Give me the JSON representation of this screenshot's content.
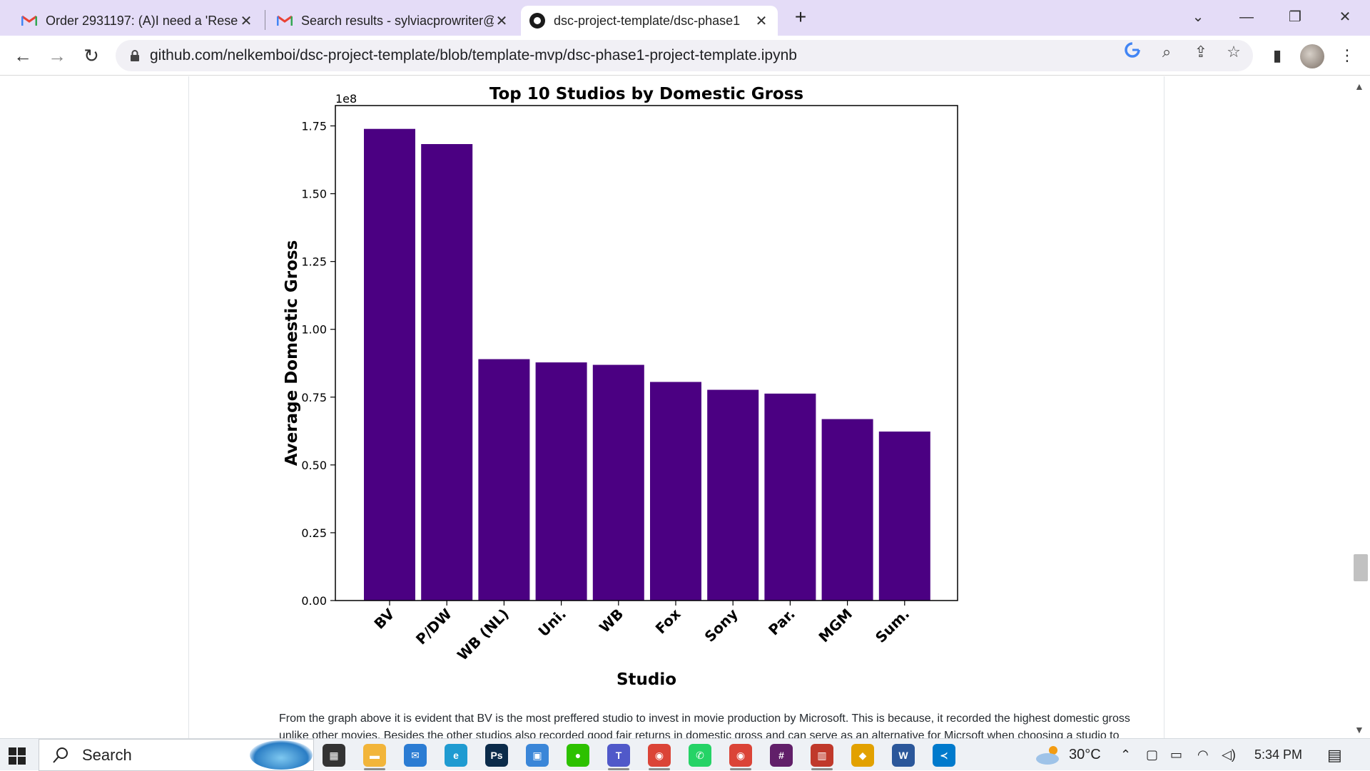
{
  "browser": {
    "tabs": [
      {
        "title": "Order 2931197: (A)I need a 'Rese",
        "icon": "gmail-icon",
        "active": false
      },
      {
        "title": "Search results - sylviacprowriter@",
        "icon": "gmail-icon",
        "active": false
      },
      {
        "title": "dsc-project-template/dsc-phase1",
        "icon": "github-icon",
        "active": true
      }
    ],
    "new_tab_label": "+",
    "url": "github.com/nelkemboi/dsc-project-template/blob/template-mvp/dsc-phase1-project-template.ipynb"
  },
  "chart_data": {
    "type": "bar",
    "title": "Top 10 Studios by Domestic Gross",
    "xlabel": "Studio",
    "ylabel": "Average Domestic Gross",
    "y_offset_label": "1e8",
    "categories": [
      "BV",
      "P/DW",
      "WB (NL)",
      "Uni.",
      "WB",
      "Fox",
      "Sony",
      "Par.",
      "MGM",
      "Sum."
    ],
    "values": [
      173900000,
      168300000,
      89000000,
      87800000,
      86900000,
      80600000,
      77700000,
      76300000,
      66900000,
      62300000
    ],
    "ylim": [
      0,
      182500000
    ],
    "yticks": [
      0,
      25000000,
      50000000,
      75000000,
      100000000,
      125000000,
      150000000,
      175000000
    ],
    "ytick_labels": [
      "0.00",
      "0.25",
      "0.50",
      "0.75",
      "1.00",
      "1.25",
      "1.50",
      "1.75"
    ],
    "bar_color": "#4b0082",
    "grid": false,
    "legend": "none"
  },
  "notebook": {
    "paragraph_line1": "From the graph above it is evident that BV is the most preffered studio to invest in movie production by Microsoft. This is because, it recorded the highest domestic gross",
    "paragraph_line2": "unlike other movies. Besides the other studios also recorded good fair returns in domestic gross and can serve as an alternative for Micrsoft when choosing a studio to"
  },
  "taskbar": {
    "search_label": "Search",
    "temperature": "30°C",
    "time": "5:34 PM",
    "apps": [
      "task-view-icon",
      "file-explorer-icon",
      "mail-icon",
      "edge-icon",
      "photoshop-icon",
      "store-icon",
      "wechat-icon",
      "teams-icon",
      "chrome-icon",
      "whatsapp-icon",
      "chrome-icon",
      "slack-icon",
      "calendar-icon",
      "git-icon",
      "word-icon",
      "vscode-icon"
    ]
  }
}
